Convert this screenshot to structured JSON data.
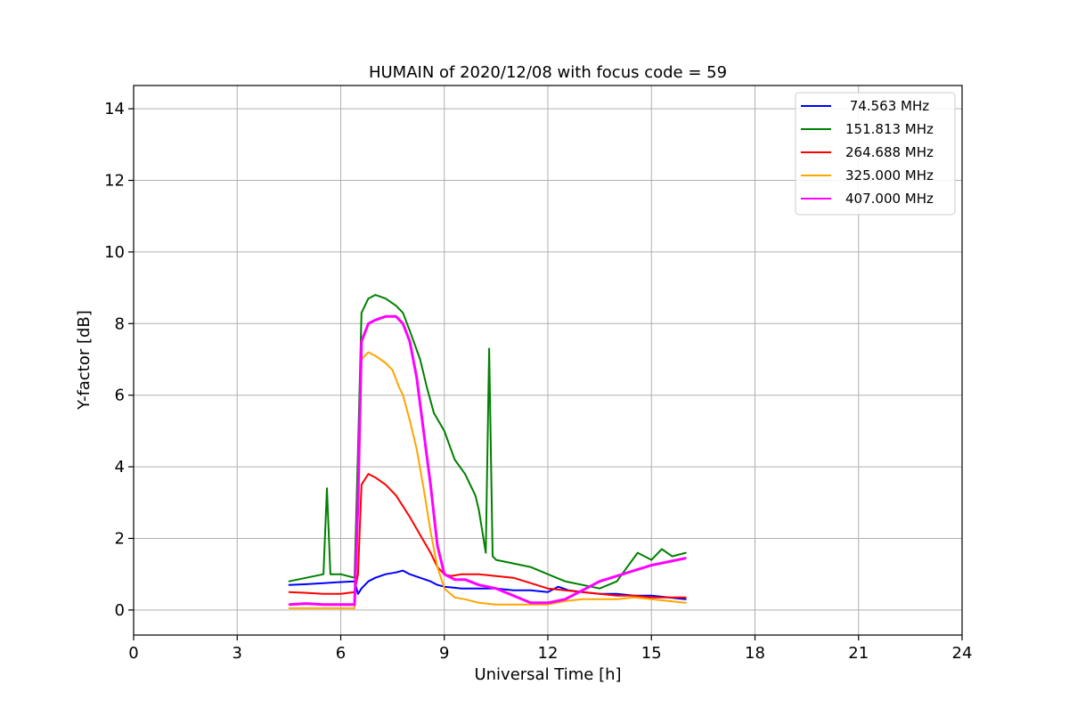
{
  "chart_data": {
    "type": "line",
    "title": "HUMAIN of 2020/12/08 with focus code = 59",
    "xlabel": "Universal Time [h]",
    "ylabel": "Y-factor [dB]",
    "xlim": [
      0,
      24
    ],
    "ylim": [
      -0.7,
      14.65
    ],
    "xticks": [
      0,
      3,
      6,
      9,
      12,
      15,
      18,
      21,
      24
    ],
    "yticks": [
      0,
      2,
      4,
      6,
      8,
      10,
      12,
      14
    ],
    "grid": true,
    "legend_position": "top-right",
    "series": [
      {
        "name": " 74.563 MHz",
        "color": "#0000ff",
        "x": [
          4.5,
          5.0,
          5.5,
          6.0,
          6.4,
          6.5,
          6.6,
          6.8,
          7.0,
          7.3,
          7.6,
          7.8,
          8.0,
          8.3,
          8.6,
          8.8,
          9.0,
          9.5,
          10.0,
          10.5,
          11.0,
          11.5,
          12.0,
          12.3,
          12.6,
          13.0,
          13.5,
          14.0,
          14.5,
          15.0,
          15.5,
          16.0
        ],
        "y": [
          0.7,
          0.72,
          0.75,
          0.78,
          0.8,
          0.45,
          0.6,
          0.8,
          0.9,
          1.0,
          1.05,
          1.1,
          1.0,
          0.9,
          0.8,
          0.7,
          0.65,
          0.6,
          0.6,
          0.6,
          0.55,
          0.55,
          0.5,
          0.65,
          0.55,
          0.5,
          0.45,
          0.45,
          0.4,
          0.4,
          0.35,
          0.3
        ]
      },
      {
        "name": "151.813 MHz",
        "color": "#008000",
        "x": [
          4.5,
          5.0,
          5.5,
          5.6,
          5.7,
          6.0,
          6.4,
          6.5,
          6.6,
          6.8,
          7.0,
          7.3,
          7.6,
          7.8,
          8.0,
          8.3,
          8.5,
          8.7,
          9.0,
          9.3,
          9.6,
          9.9,
          10.0,
          10.2,
          10.3,
          10.4,
          10.5,
          11.0,
          11.5,
          12.0,
          12.5,
          13.0,
          13.5,
          14.0,
          14.3,
          14.6,
          15.0,
          15.3,
          15.6,
          16.0
        ],
        "y": [
          0.8,
          0.9,
          1.0,
          3.4,
          1.0,
          1.0,
          0.9,
          4.5,
          8.3,
          8.7,
          8.8,
          8.7,
          8.5,
          8.3,
          7.8,
          7.0,
          6.2,
          5.5,
          5.0,
          4.2,
          3.8,
          3.2,
          2.8,
          1.6,
          7.3,
          1.5,
          1.4,
          1.3,
          1.2,
          1.0,
          0.8,
          0.7,
          0.6,
          0.8,
          1.2,
          1.6,
          1.4,
          1.7,
          1.5,
          1.6
        ]
      },
      {
        "name": "264.688 MHz",
        "color": "#ff0000",
        "x": [
          4.5,
          5.0,
          5.5,
          6.0,
          6.4,
          6.5,
          6.6,
          6.8,
          7.0,
          7.3,
          7.6,
          7.8,
          8.0,
          8.3,
          8.6,
          8.8,
          9.0,
          9.2,
          9.5,
          10.0,
          10.5,
          11.0,
          11.5,
          12.0,
          12.5,
          13.0,
          13.5,
          14.0,
          14.5,
          15.0,
          15.5,
          16.0
        ],
        "y": [
          0.5,
          0.48,
          0.45,
          0.45,
          0.5,
          1.0,
          3.5,
          3.8,
          3.7,
          3.5,
          3.2,
          2.9,
          2.6,
          2.1,
          1.6,
          1.2,
          1.0,
          0.95,
          1.0,
          1.0,
          0.95,
          0.9,
          0.75,
          0.6,
          0.55,
          0.5,
          0.45,
          0.4,
          0.4,
          0.35,
          0.35,
          0.35
        ]
      },
      {
        "name": "325.000 MHz",
        "color": "#ffa500",
        "x": [
          4.5,
          5.0,
          5.5,
          6.0,
          6.4,
          6.5,
          6.6,
          6.8,
          7.0,
          7.3,
          7.5,
          7.7,
          7.8,
          8.0,
          8.2,
          8.4,
          8.6,
          8.8,
          9.0,
          9.3,
          9.6,
          10.0,
          10.5,
          11.0,
          11.5,
          12.0,
          12.5,
          13.0,
          13.5,
          14.0,
          14.5,
          15.0,
          15.5,
          16.0
        ],
        "y": [
          0.05,
          0.05,
          0.05,
          0.05,
          0.05,
          3.0,
          7.0,
          7.2,
          7.1,
          6.9,
          6.7,
          6.2,
          6.0,
          5.3,
          4.5,
          3.4,
          2.2,
          1.2,
          0.6,
          0.35,
          0.3,
          0.2,
          0.15,
          0.15,
          0.15,
          0.15,
          0.25,
          0.3,
          0.3,
          0.3,
          0.35,
          0.3,
          0.25,
          0.2
        ]
      },
      {
        "name": "407.000 MHz",
        "color": "#ff00ff",
        "x": [
          4.5,
          5.0,
          5.5,
          6.0,
          6.4,
          6.5,
          6.6,
          6.8,
          7.0,
          7.3,
          7.6,
          7.8,
          8.0,
          8.2,
          8.4,
          8.6,
          8.8,
          9.0,
          9.3,
          9.6,
          10.0,
          10.5,
          11.0,
          11.5,
          12.0,
          12.5,
          13.0,
          13.5,
          14.0,
          14.5,
          15.0,
          15.5,
          16.0
        ],
        "y": [
          0.15,
          0.18,
          0.15,
          0.15,
          0.15,
          3.0,
          7.5,
          8.0,
          8.1,
          8.2,
          8.2,
          8.0,
          7.5,
          6.5,
          5.0,
          3.5,
          1.8,
          1.0,
          0.85,
          0.85,
          0.7,
          0.6,
          0.4,
          0.2,
          0.2,
          0.3,
          0.55,
          0.8,
          0.95,
          1.1,
          1.25,
          1.35,
          1.45
        ]
      }
    ]
  }
}
